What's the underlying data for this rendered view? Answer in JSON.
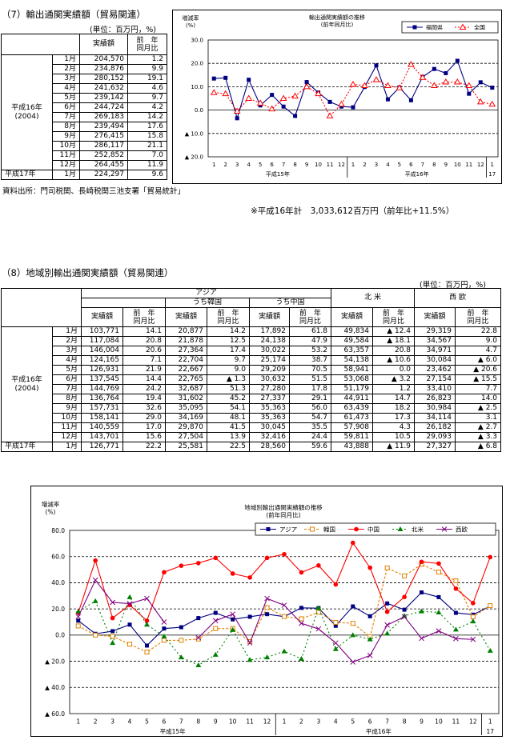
{
  "section7": {
    "title": "（7）輸出通関実績額（貿易関連）",
    "unit": "(単位：百万円，%)",
    "col_amount": "実績額",
    "col_yoy": "前　年\n同月比",
    "year_label": "平成16年\n(2004)",
    "next_year_label": "平成17年",
    "rows": [
      {
        "month": "1月",
        "amount": "204,570",
        "yoy": "1.2"
      },
      {
        "month": "2月",
        "amount": "234,876",
        "yoy": "9.9"
      },
      {
        "month": "3月",
        "amount": "280,152",
        "yoy": "19.1"
      },
      {
        "month": "4月",
        "amount": "241,632",
        "yoy": "4.6"
      },
      {
        "month": "5月",
        "amount": "239,142",
        "yoy": "9.7"
      },
      {
        "month": "6月",
        "amount": "244,724",
        "yoy": "4.2"
      },
      {
        "month": "7月",
        "amount": "269,183",
        "yoy": "14.2"
      },
      {
        "month": "8月",
        "amount": "239,494",
        "yoy": "17.6"
      },
      {
        "month": "9月",
        "amount": "276,415",
        "yoy": "15.8"
      },
      {
        "month": "10月",
        "amount": "286,117",
        "yoy": "21.1"
      },
      {
        "month": "11月",
        "amount": "252,852",
        "yoy": "7.0"
      },
      {
        "month": "12月",
        "amount": "264,455",
        "yoy": "11.9"
      }
    ],
    "next_row": {
      "month": "1月",
      "amount": "224,297",
      "yoy": "9.6"
    },
    "source": "資料出所：門司税関、長崎税関三池支署「貿易統計」",
    "total_note": "※平成16年計　3,033,612百万円（前年比+11.5%）"
  },
  "section8": {
    "title": "（8）地域別輸出通関実績額（貿易関連）",
    "unit": "(単位：百万円，%)",
    "h_asia": "アジア",
    "h_korea": "うち韓国",
    "h_china": "うち中国",
    "h_na": "北 米",
    "h_we": "西 欧",
    "col_amount": "実績額",
    "col_yoy": "前　年\n同月比",
    "year_label": "平成16年\n(2004)",
    "next_year_label": "平成17年",
    "rows": [
      {
        "month": "1月",
        "asia": "103,771",
        "asia_y": "14.1",
        "kr": "20,877",
        "kr_y": "14.2",
        "cn": "17,892",
        "cn_y": "61.8",
        "na": "49,834",
        "na_y": "▲ 12.4",
        "we": "29,319",
        "we_y": "22.8"
      },
      {
        "month": "2月",
        "asia": "117,084",
        "asia_y": "20.8",
        "kr": "21,878",
        "kr_y": "12.5",
        "cn": "24,138",
        "cn_y": "47.9",
        "na": "49,584",
        "na_y": "▲ 18.1",
        "we": "34,567",
        "we_y": "9.0"
      },
      {
        "month": "3月",
        "asia": "146,004",
        "asia_y": "20.6",
        "kr": "27,364",
        "kr_y": "17.4",
        "cn": "30,022",
        "cn_y": "53.2",
        "na": "63,357",
        "na_y": "20.8",
        "we": "34,971",
        "we_y": "4.7"
      },
      {
        "month": "4月",
        "asia": "124,165",
        "asia_y": "7.1",
        "kr": "22,704",
        "kr_y": "9.7",
        "cn": "25,174",
        "cn_y": "38.7",
        "na": "54,138",
        "na_y": "▲ 10.6",
        "we": "30,084",
        "we_y": "▲ 6.0"
      },
      {
        "month": "5月",
        "asia": "126,931",
        "asia_y": "21.9",
        "kr": "22,667",
        "kr_y": "9.0",
        "cn": "29,209",
        "cn_y": "70.5",
        "na": "58,941",
        "na_y": "0.0",
        "we": "23,462",
        "we_y": "▲ 20.6"
      },
      {
        "month": "6月",
        "asia": "137,545",
        "asia_y": "14.4",
        "kr": "22,765",
        "kr_y": "▲ 1.3",
        "cn": "30,632",
        "cn_y": "51.5",
        "na": "53,068",
        "na_y": "▲ 3.2",
        "we": "27,154",
        "we_y": "▲ 15.5"
      },
      {
        "month": "7月",
        "asia": "144,769",
        "asia_y": "24.2",
        "kr": "32,687",
        "kr_y": "51.3",
        "cn": "27,280",
        "cn_y": "17.8",
        "na": "51,179",
        "na_y": "1.2",
        "we": "33,410",
        "we_y": "7.7"
      },
      {
        "month": "8月",
        "asia": "136,764",
        "asia_y": "19.4",
        "kr": "31,602",
        "kr_y": "45.2",
        "cn": "27,337",
        "cn_y": "29.1",
        "na": "44,911",
        "na_y": "14.7",
        "we": "26,823",
        "we_y": "14.0"
      },
      {
        "month": "9月",
        "asia": "157,731",
        "asia_y": "32.6",
        "kr": "35,095",
        "kr_y": "54.1",
        "cn": "35,363",
        "cn_y": "56.0",
        "na": "63,439",
        "na_y": "18.2",
        "we": "30,984",
        "we_y": "▲ 2.5"
      },
      {
        "month": "10月",
        "asia": "158,141",
        "asia_y": "29.0",
        "kr": "34,169",
        "kr_y": "48.1",
        "cn": "35,363",
        "cn_y": "54.7",
        "na": "61,473",
        "na_y": "17.3",
        "we": "34,114",
        "we_y": "3.1"
      },
      {
        "month": "11月",
        "asia": "140,559",
        "asia_y": "17.0",
        "kr": "29,870",
        "kr_y": "41.5",
        "cn": "30,045",
        "cn_y": "35.5",
        "na": "57,908",
        "na_y": "4.3",
        "we": "26,182",
        "we_y": "▲ 2.7"
      },
      {
        "month": "12月",
        "asia": "143,701",
        "asia_y": "15.6",
        "kr": "27,504",
        "kr_y": "13.9",
        "cn": "32,416",
        "cn_y": "24.4",
        "na": "59,811",
        "na_y": "10.5",
        "we": "29,093",
        "we_y": "▲ 3.3"
      }
    ],
    "next_row": {
      "month": "1月",
      "asia": "126,771",
      "asia_y": "22.2",
      "kr": "25,581",
      "kr_y": "22.5",
      "cn": "28,560",
      "cn_y": "59.6",
      "na": "43,888",
      "na_y": "▲ 11.9",
      "we": "27,327",
      "we_y": "▲ 6.8"
    }
  },
  "chart_data": [
    {
      "type": "line",
      "title": "輸出通関実績額の推移",
      "subtitle": "(前年同月比)",
      "ylabel": "増減率\n(%)",
      "ylim": [
        -20,
        30
      ],
      "yticks": [
        30,
        20,
        10,
        0,
        -10,
        -20
      ],
      "ytick_labels": [
        "30.0",
        "20.0",
        "10.0",
        "0.0",
        "▲ 10.0",
        "▲ 20.0"
      ],
      "x_labels": [
        "1",
        "2",
        "3",
        "4",
        "5",
        "6",
        "7",
        "8",
        "9",
        "10",
        "11",
        "12",
        "1",
        "2",
        "3",
        "4",
        "5",
        "6",
        "7",
        "8",
        "9",
        "10",
        "11",
        "12",
        "1"
      ],
      "year_labels": [
        "平成15年",
        "平成16年",
        "17"
      ],
      "grid": true,
      "legend": "top-right",
      "series": [
        {
          "name": "福岡県",
          "color": "#000080",
          "values": [
            13.5,
            13.8,
            -3.5,
            13.0,
            2.0,
            6.5,
            1.5,
            -2.5,
            12.0,
            7.5,
            3.5,
            1.5,
            1.2,
            9.9,
            19.1,
            4.6,
            9.7,
            4.2,
            14.2,
            17.6,
            15.8,
            21.1,
            7.0,
            11.9,
            9.6
          ]
        },
        {
          "name": "全国",
          "color": "#ff0000",
          "values": [
            7.5,
            7.0,
            -0.5,
            5.0,
            3.0,
            0.5,
            5.0,
            6.0,
            10.0,
            7.0,
            -2.5,
            2.5,
            11.0,
            10.5,
            13.0,
            10.5,
            9.5,
            19.5,
            14.0,
            10.5,
            12.0,
            12.0,
            10.5,
            3.5,
            2.5
          ]
        }
      ]
    },
    {
      "type": "line",
      "title": "地域別輸出通関実績額の推移",
      "subtitle": "(前年同月比)",
      "ylabel": "増減率\n(%)",
      "ylim": [
        -60,
        80
      ],
      "yticks": [
        80,
        60,
        40,
        20,
        0,
        -20,
        -40,
        -60
      ],
      "ytick_labels": [
        "80.0",
        "60.0",
        "40.0",
        "20.0",
        "0.0",
        "▲ 20.0",
        "▲ 40.0",
        "▲ 60.0"
      ],
      "x_labels": [
        "1",
        "2",
        "3",
        "4",
        "5",
        "6",
        "7",
        "8",
        "9",
        "10",
        "11",
        "12",
        "1",
        "2",
        "3",
        "4",
        "5",
        "6",
        "7",
        "8",
        "9",
        "10",
        "11",
        "12",
        "1"
      ],
      "year_labels": [
        "平成15年",
        "平成16年",
        "17"
      ],
      "grid": true,
      "legend": "top-right",
      "series": [
        {
          "name": "アジア",
          "color": "#000080",
          "values": [
            11,
            1,
            3,
            8,
            -8,
            5,
            6,
            13,
            17,
            12,
            14,
            16,
            14.1,
            20.8,
            20.6,
            7.1,
            21.9,
            14.4,
            24.2,
            19.4,
            32.6,
            29.0,
            17.0,
            15.6,
            22.2
          ]
        },
        {
          "name": "韓国",
          "color": "#e08000",
          "values": [
            7,
            0,
            -1,
            -7,
            -13,
            -4,
            -4,
            -3,
            5,
            5,
            -5,
            21,
            14.2,
            12.5,
            17.4,
            9.7,
            9.0,
            -1.3,
            51.3,
            45.2,
            54.1,
            48.1,
            41.5,
            13.9,
            22.5
          ]
        },
        {
          "name": "中国",
          "color": "#ff0000",
          "values": [
            17,
            57,
            13,
            23,
            11,
            48,
            53,
            55,
            59,
            47,
            44,
            59,
            61.8,
            47.9,
            53.2,
            38.7,
            70.5,
            51.5,
            17.8,
            29.1,
            56.0,
            54.7,
            35.5,
            24.4,
            59.6
          ]
        },
        {
          "name": "北米",
          "color": "#008000",
          "values": [
            18,
            26,
            -6,
            29,
            8,
            -1,
            -17,
            -23,
            -15,
            4,
            -19,
            -17,
            -12.4,
            -18.1,
            20.8,
            -10.6,
            0.0,
            -3.2,
            1.2,
            14.7,
            18.2,
            17.3,
            4.3,
            10.5,
            -11.9
          ]
        },
        {
          "name": "西欧",
          "color": "#800080",
          "values": [
            14,
            42,
            25,
            24,
            28,
            10,
            null,
            -2,
            11,
            16,
            -6,
            28,
            22.8,
            9.0,
            4.7,
            -6.0,
            -20.6,
            -15.5,
            7.7,
            14.0,
            -2.5,
            3.1,
            -2.7,
            -3.3,
            null
          ]
        }
      ]
    }
  ]
}
